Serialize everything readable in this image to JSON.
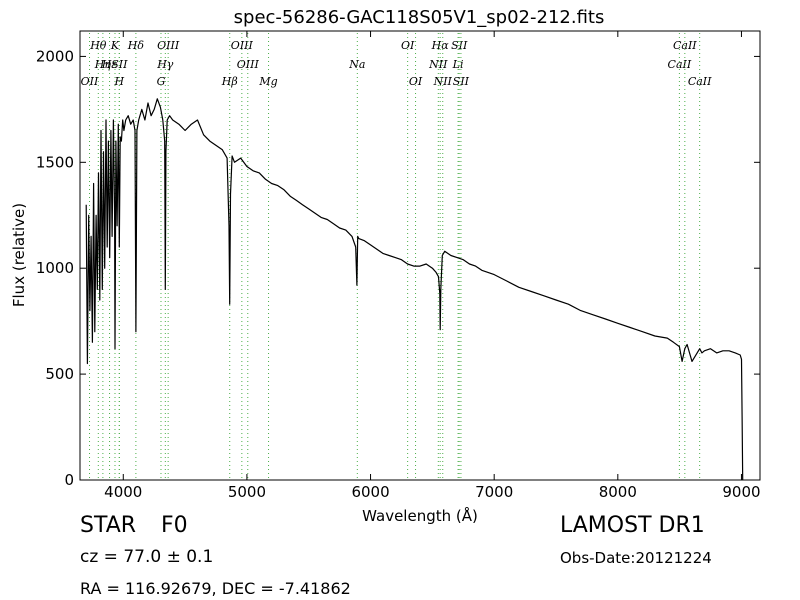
{
  "chart_data": {
    "type": "line",
    "title": "spec-56286-GAC118S05V1_sp02-212.fits",
    "xlabel": "Wavelength (Å)",
    "ylabel": "Flux (relative)",
    "xlim": [
      3650,
      9150
    ],
    "ylim": [
      0,
      2120
    ],
    "xticks": [
      4000,
      5000,
      6000,
      7000,
      8000,
      9000
    ],
    "yticks": [
      0,
      500,
      1000,
      1500,
      2000
    ],
    "grid": false,
    "legend": "none",
    "line_color": "#000000",
    "marker_color": "#4daf4a",
    "spectrum": {
      "x": [
        3700,
        3710,
        3720,
        3730,
        3740,
        3750,
        3760,
        3770,
        3780,
        3790,
        3800,
        3810,
        3820,
        3830,
        3840,
        3850,
        3860,
        3870,
        3880,
        3890,
        3900,
        3910,
        3920,
        3930,
        3933,
        3940,
        3950,
        3960,
        3968,
        3975,
        3985,
        3995,
        4005,
        4020,
        4040,
        4060,
        4080,
        4095,
        4102,
        4110,
        4125,
        4150,
        4175,
        4200,
        4225,
        4250,
        4275,
        4300,
        4320,
        4335,
        4340,
        4345,
        4355,
        4375,
        4400,
        4450,
        4500,
        4550,
        4600,
        4650,
        4700,
        4750,
        4800,
        4840,
        4855,
        4861,
        4867,
        4880,
        4900,
        4950,
        5000,
        5050,
        5100,
        5150,
        5200,
        5250,
        5300,
        5350,
        5400,
        5450,
        5500,
        5550,
        5600,
        5650,
        5700,
        5750,
        5800,
        5850,
        5880,
        5890,
        5896,
        5905,
        5950,
        6000,
        6050,
        6100,
        6150,
        6200,
        6250,
        6300,
        6350,
        6400,
        6450,
        6500,
        6530,
        6550,
        6560,
        6563,
        6568,
        6580,
        6600,
        6650,
        6700,
        6750,
        6800,
        6850,
        6900,
        6950,
        7000,
        7100,
        7200,
        7300,
        7400,
        7500,
        7600,
        7700,
        7800,
        7900,
        8000,
        8100,
        8200,
        8300,
        8400,
        8450,
        8498,
        8520,
        8542,
        8560,
        8600,
        8662,
        8680,
        8700,
        8750,
        8800,
        8850,
        8900,
        8950,
        8990,
        9000,
        9005,
        9010
      ],
      "y": [
        1300,
        550,
        1250,
        800,
        1150,
        650,
        1400,
        700,
        1250,
        900,
        1450,
        850,
        1650,
        900,
        1550,
        1000,
        1700,
        1100,
        1600,
        1050,
        1650,
        1150,
        1700,
        1250,
        620,
        1600,
        1200,
        1680,
        1100,
        1620,
        1600,
        1700,
        1650,
        1700,
        1720,
        1680,
        1700,
        1650,
        700,
        1650,
        1700,
        1750,
        1700,
        1780,
        1720,
        1750,
        1800,
        1760,
        1700,
        1600,
        900,
        1550,
        1700,
        1720,
        1700,
        1680,
        1650,
        1680,
        1700,
        1630,
        1600,
        1580,
        1560,
        1520,
        1200,
        830,
        1350,
        1530,
        1500,
        1520,
        1480,
        1460,
        1450,
        1420,
        1400,
        1390,
        1370,
        1340,
        1320,
        1300,
        1280,
        1260,
        1240,
        1230,
        1210,
        1190,
        1180,
        1150,
        1100,
        920,
        1150,
        1140,
        1130,
        1110,
        1090,
        1070,
        1060,
        1050,
        1040,
        1020,
        1010,
        1010,
        1020,
        1000,
        980,
        960,
        880,
        710,
        900,
        1060,
        1080,
        1060,
        1050,
        1040,
        1020,
        1010,
        990,
        980,
        970,
        940,
        910,
        890,
        870,
        850,
        830,
        800,
        780,
        760,
        740,
        720,
        700,
        680,
        670,
        650,
        630,
        560,
        620,
        640,
        560,
        620,
        600,
        610,
        620,
        600,
        610,
        610,
        600,
        590,
        570,
        300,
        0
      ]
    },
    "lines": [
      {
        "label": "OII",
        "x": 3727,
        "row": 2
      },
      {
        "label": "Hθ",
        "x": 3798,
        "row": 0
      },
      {
        "label": "Hη",
        "x": 3835,
        "row": 1
      },
      {
        "label": "Hε",
        "x": 3889,
        "row": 1
      },
      {
        "label": "K",
        "x": 3933,
        "row": 0
      },
      {
        "label": "SII",
        "x": 3968,
        "row": 1
      },
      {
        "label": "H",
        "x": 3968,
        "row": 2
      },
      {
        "label": "Hδ",
        "x": 4102,
        "row": 0
      },
      {
        "label": "OIII",
        "x": 4363,
        "row": 0
      },
      {
        "label": "Hγ",
        "x": 4340,
        "row": 1
      },
      {
        "label": "G",
        "x": 4305,
        "row": 2
      },
      {
        "label": "OIII",
        "x": 4959,
        "row": 0
      },
      {
        "label": "OIII",
        "x": 5007,
        "row": 1
      },
      {
        "label": "Hβ",
        "x": 4861,
        "row": 2
      },
      {
        "label": "Mg",
        "x": 5175,
        "row": 2
      },
      {
        "label": "Na",
        "x": 5893,
        "row": 1
      },
      {
        "label": "OI",
        "x": 6300,
        "row": 0
      },
      {
        "label": "OI",
        "x": 6364,
        "row": 2
      },
      {
        "label": "Hα",
        "x": 6563,
        "row": 0
      },
      {
        "label": "NII",
        "x": 6548,
        "row": 1
      },
      {
        "label": "NII",
        "x": 6584,
        "row": 2
      },
      {
        "label": "SII",
        "x": 6717,
        "row": 0
      },
      {
        "label": "Li",
        "x": 6708,
        "row": 1
      },
      {
        "label": "SII",
        "x": 6731,
        "row": 2
      },
      {
        "label": "CaII",
        "x": 8498,
        "row": 1
      },
      {
        "label": "CaII",
        "x": 8542,
        "row": 0
      },
      {
        "label": "CaII",
        "x": 8662,
        "row": 2
      }
    ]
  },
  "info": {
    "class_type": "STAR",
    "subclass": "F0",
    "survey": "LAMOST DR1",
    "redshift": "cz = 77.0 ± 0.1",
    "obs_date": "Obs-Date:20121224",
    "coords": "RA = 116.92679, DEC = -7.41862"
  }
}
